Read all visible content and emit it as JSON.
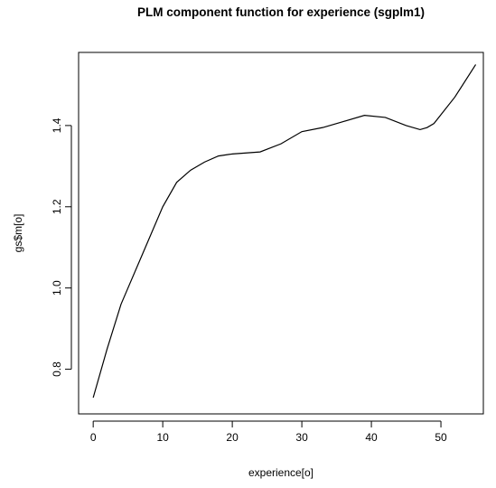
{
  "chart_data": {
    "type": "line",
    "title": "PLM component function for experience (sgplm1)",
    "x_label": "experience[o]",
    "y_label": "gs$m[o]",
    "x": [
      0,
      2,
      4,
      5,
      7,
      10,
      12,
      14,
      16,
      18,
      20,
      24,
      27,
      30,
      33,
      36,
      39,
      42,
      45,
      47,
      48,
      49,
      52,
      55
    ],
    "series": [
      {
        "color": "#000000",
        "values": [
          0.73,
          0.85,
          0.96,
          1.0,
          1.08,
          1.2,
          1.26,
          1.29,
          1.31,
          1.325,
          1.33,
          1.335,
          1.355,
          1.385,
          1.395,
          1.41,
          1.425,
          1.42,
          1.4,
          1.39,
          1.395,
          1.405,
          1.47,
          1.55
        ]
      }
    ],
    "xlim": [
      -2.1,
      56.1
    ],
    "ylim": [
      0.69,
      1.58
    ],
    "xticks": [
      0,
      10,
      20,
      30,
      40,
      50
    ],
    "yticks": [
      0.8,
      {
        "value": 1,
        "label": "1.0"
      },
      1.2,
      1.4
    ]
  }
}
